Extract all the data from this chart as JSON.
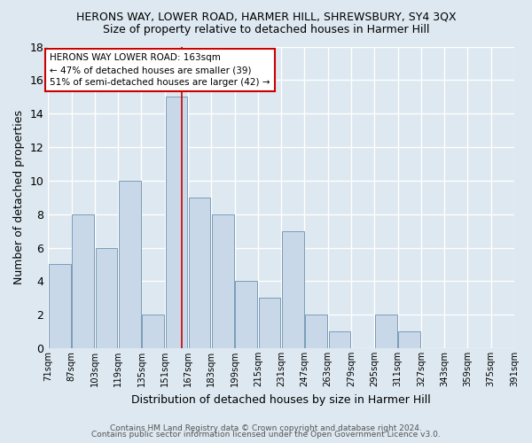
{
  "title": "HERONS WAY, LOWER ROAD, HARMER HILL, SHREWSBURY, SY4 3QX",
  "subtitle": "Size of property relative to detached houses in Harmer Hill",
  "xlabel": "Distribution of detached houses by size in Harmer Hill",
  "ylabel": "Number of detached properties",
  "bin_labels": [
    "71sqm",
    "87sqm",
    "103sqm",
    "119sqm",
    "135sqm",
    "151sqm",
    "167sqm",
    "183sqm",
    "199sqm",
    "215sqm",
    "231sqm",
    "247sqm",
    "263sqm",
    "279sqm",
    "295sqm",
    "311sqm",
    "327sqm",
    "343sqm",
    "359sqm",
    "375sqm",
    "391sqm"
  ],
  "bin_edges": [
    71,
    87,
    103,
    119,
    135,
    151,
    167,
    183,
    199,
    215,
    231,
    247,
    263,
    279,
    295,
    311,
    327,
    343,
    359,
    375,
    391
  ],
  "bar_values": [
    5,
    8,
    6,
    10,
    2,
    15,
    9,
    8,
    4,
    3,
    7,
    2,
    1,
    0,
    2,
    1,
    0,
    0,
    0,
    0
  ],
  "bar_color": "#c8d8e8",
  "bar_edge_color": "#7a9cb8",
  "highlight_value": 163,
  "highlight_line_color": "#cc0000",
  "annotation_text": "HERONS WAY LOWER ROAD: 163sqm\n← 47% of detached houses are smaller (39)\n51% of semi-detached houses are larger (42) →",
  "annotation_box_color": "#ffffff",
  "annotation_box_edge_color": "#cc0000",
  "ylim": [
    0,
    18
  ],
  "yticks": [
    0,
    2,
    4,
    6,
    8,
    10,
    12,
    14,
    16,
    18
  ],
  "footer1": "Contains HM Land Registry data © Crown copyright and database right 2024.",
  "footer2": "Contains public sector information licensed under the Open Government Licence v3.0.",
  "background_color": "#dde8f0",
  "plot_background_color": "#dde8f0",
  "grid_color": "#ffffff"
}
